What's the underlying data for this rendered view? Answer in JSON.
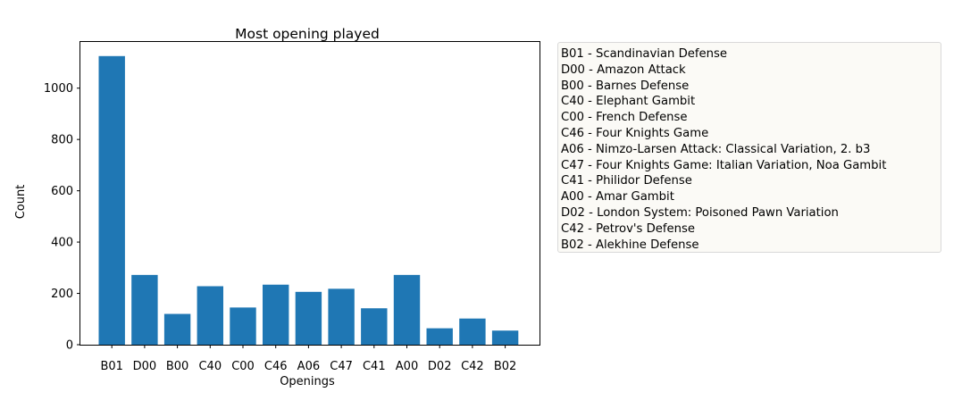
{
  "chart_data": {
    "type": "bar",
    "title": "Most opening played",
    "xlabel": "Openings",
    "ylabel": "Count",
    "categories": [
      "B01",
      "D00",
      "B00",
      "C40",
      "C00",
      "C46",
      "A06",
      "C47",
      "C41",
      "A00",
      "D02",
      "C42",
      "B02"
    ],
    "values": [
      1125,
      272,
      120,
      228,
      145,
      234,
      206,
      218,
      142,
      272,
      64,
      102,
      55
    ],
    "ylim": [
      0,
      1180
    ],
    "yticks": [
      0,
      200,
      400,
      600,
      800,
      1000
    ],
    "color": "#1f77b4",
    "grid": false,
    "legend_placement": "outside-right",
    "legend": [
      "B01 - Scandinavian Defense",
      "D00 - Amazon Attack",
      "B00 - Barnes Defense",
      "C40 - Elephant Gambit",
      "C00 - French Defense",
      "C46 - Four Knights Game",
      "A06 - Nimzo-Larsen Attack: Classical Variation, 2. b3",
      "C47 - Four Knights Game: Italian Variation, Noa Gambit",
      "C41 - Philidor Defense",
      "A00 - Amar Gambit",
      "D02 - London System: Poisoned Pawn Variation",
      "C42 - Petrov's Defense",
      "B02 - Alekhine Defense"
    ]
  }
}
